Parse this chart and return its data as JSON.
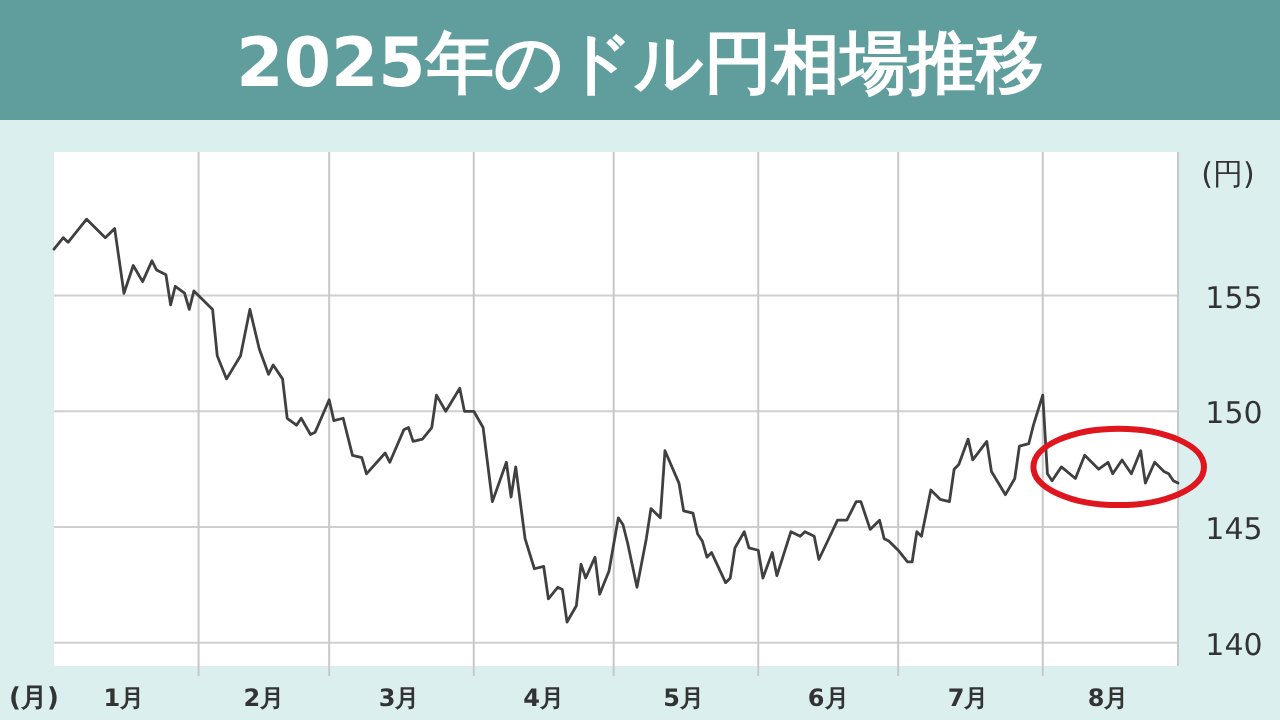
{
  "chart_data": {
    "type": "line",
    "title": "2025年のドル円相場推移",
    "xlabel": "(月)",
    "ylabel": "(円)",
    "xlim": [
      "2025-01-01",
      "2025-08-30"
    ],
    "ylim": [
      139,
      161.2
    ],
    "yticks": [
      140,
      145,
      150,
      155
    ],
    "xticks": [
      {
        "value": "2025-01-16",
        "label": "1月"
      },
      {
        "value": "2025-02-01",
        "label": null
      },
      {
        "value": "2025-02-15",
        "label": "2月"
      },
      {
        "value": "2025-03-01",
        "label": null
      },
      {
        "value": "2025-03-16",
        "label": "3月"
      },
      {
        "value": "2025-04-01",
        "label": null
      },
      {
        "value": "2025-04-16",
        "label": "4月"
      },
      {
        "value": "2025-05-01",
        "label": null
      },
      {
        "value": "2025-05-16",
        "label": "5月"
      },
      {
        "value": "2025-06-01",
        "label": null
      },
      {
        "value": "2025-06-16",
        "label": "6月"
      },
      {
        "value": "2025-07-01",
        "label": null
      },
      {
        "value": "2025-07-16",
        "label": "7月"
      },
      {
        "value": "2025-08-01",
        "label": null
      },
      {
        "value": "2025-08-15",
        "label": "8月"
      }
    ],
    "grid": true,
    "marker": "none",
    "line_style": "solid",
    "series": [
      {
        "color": "#404040",
        "x": [
          "2025-01-01",
          "2025-01-03",
          "2025-01-04",
          "2025-01-08",
          "2025-01-12",
          "2025-01-14",
          "2025-01-16",
          "2025-01-18",
          "2025-01-20",
          "2025-01-22",
          "2025-01-23",
          "2025-01-25",
          "2025-01-26",
          "2025-01-27",
          "2025-01-29",
          "2025-01-30",
          "2025-01-31",
          "2025-02-04",
          "2025-02-05",
          "2025-02-07",
          "2025-02-10",
          "2025-02-12",
          "2025-02-14",
          "2025-02-16",
          "2025-02-17",
          "2025-02-19",
          "2025-02-20",
          "2025-02-22",
          "2025-02-23",
          "2025-02-25",
          "2025-02-26",
          "2025-03-01",
          "2025-03-02",
          "2025-03-04",
          "2025-03-06",
          "2025-03-08",
          "2025-03-09",
          "2025-03-13",
          "2025-03-14",
          "2025-03-17",
          "2025-03-18",
          "2025-03-19",
          "2025-03-21",
          "2025-03-23",
          "2025-03-24",
          "2025-03-26",
          "2025-03-29",
          "2025-03-30",
          "2025-04-01",
          "2025-04-03",
          "2025-04-05",
          "2025-04-08",
          "2025-04-09",
          "2025-04-10",
          "2025-04-12",
          "2025-04-14",
          "2025-04-16",
          "2025-04-17",
          "2025-04-19",
          "2025-04-20",
          "2025-04-21",
          "2025-04-23",
          "2025-04-24",
          "2025-04-25",
          "2025-04-27",
          "2025-04-28",
          "2025-04-30",
          "2025-05-02",
          "2025-05-03",
          "2025-05-04",
          "2025-05-06",
          "2025-05-08",
          "2025-05-09",
          "2025-05-11",
          "2025-05-12",
          "2025-05-15",
          "2025-05-16",
          "2025-05-18",
          "2025-05-19",
          "2025-05-20",
          "2025-05-21",
          "2025-05-22",
          "2025-05-25",
          "2025-05-26",
          "2025-05-27",
          "2025-05-29",
          "2025-05-30",
          "2025-06-01",
          "2025-06-02",
          "2025-06-04",
          "2025-06-05",
          "2025-06-08",
          "2025-06-10",
          "2025-06-11",
          "2025-06-13",
          "2025-06-14",
          "2025-06-18",
          "2025-06-20",
          "2025-06-21",
          "2025-06-22",
          "2025-06-23",
          "2025-06-25",
          "2025-06-27",
          "2025-06-28",
          "2025-06-29",
          "2025-07-01",
          "2025-07-03",
          "2025-07-04",
          "2025-07-05",
          "2025-07-06",
          "2025-07-08",
          "2025-07-10",
          "2025-07-12",
          "2025-07-13",
          "2025-07-14",
          "2025-07-16",
          "2025-07-17",
          "2025-07-20",
          "2025-07-21",
          "2025-07-24",
          "2025-07-26",
          "2025-07-27",
          "2025-07-29",
          "2025-07-30",
          "2025-08-01",
          "2025-08-02",
          "2025-08-03",
          "2025-08-05",
          "2025-08-08",
          "2025-08-10",
          "2025-08-13",
          "2025-08-15",
          "2025-08-16",
          "2025-08-18",
          "2025-08-20",
          "2025-08-22",
          "2025-08-23",
          "2025-08-25",
          "2025-08-27",
          "2025-08-28",
          "2025-08-29",
          "2025-08-30"
        ],
        "values": [
          157.0,
          157.5,
          157.3,
          158.3,
          157.5,
          157.9,
          155.1,
          156.3,
          155.6,
          156.5,
          156.1,
          155.9,
          154.6,
          155.4,
          155.1,
          154.4,
          155.2,
          154.4,
          152.4,
          151.4,
          152.4,
          154.4,
          152.7,
          151.6,
          152.0,
          151.4,
          149.7,
          149.4,
          149.7,
          149.0,
          149.1,
          150.5,
          149.6,
          149.7,
          148.1,
          148.0,
          147.3,
          148.2,
          147.8,
          149.2,
          149.3,
          148.7,
          148.8,
          149.3,
          150.7,
          150.0,
          151.0,
          150.0,
          150.0,
          149.3,
          146.1,
          147.8,
          146.3,
          147.6,
          144.5,
          143.2,
          143.3,
          141.9,
          142.4,
          142.3,
          140.9,
          141.6,
          143.4,
          142.8,
          143.7,
          142.1,
          143.1,
          145.4,
          145.1,
          144.3,
          142.4,
          144.5,
          145.8,
          145.4,
          148.3,
          146.9,
          145.7,
          145.6,
          144.7,
          144.4,
          143.7,
          143.9,
          142.6,
          142.8,
          144.1,
          144.8,
          144.1,
          144.0,
          142.8,
          143.9,
          142.9,
          144.8,
          144.6,
          144.8,
          144.6,
          143.6,
          145.3,
          145.3,
          145.7,
          146.1,
          146.1,
          144.9,
          145.3,
          144.5,
          144.4,
          144.0,
          143.5,
          143.5,
          144.8,
          144.6,
          146.6,
          146.2,
          146.1,
          147.5,
          147.7,
          148.8,
          147.9,
          148.7,
          147.4,
          146.4,
          147.1,
          148.5,
          148.6,
          149.4,
          150.7,
          147.3,
          147.0,
          147.6,
          147.1,
          148.1,
          147.5,
          147.8,
          147.3,
          147.9,
          147.3,
          148.3,
          146.9,
          147.8,
          147.4,
          147.3,
          147.0,
          146.9
        ]
      }
    ]
  }
}
